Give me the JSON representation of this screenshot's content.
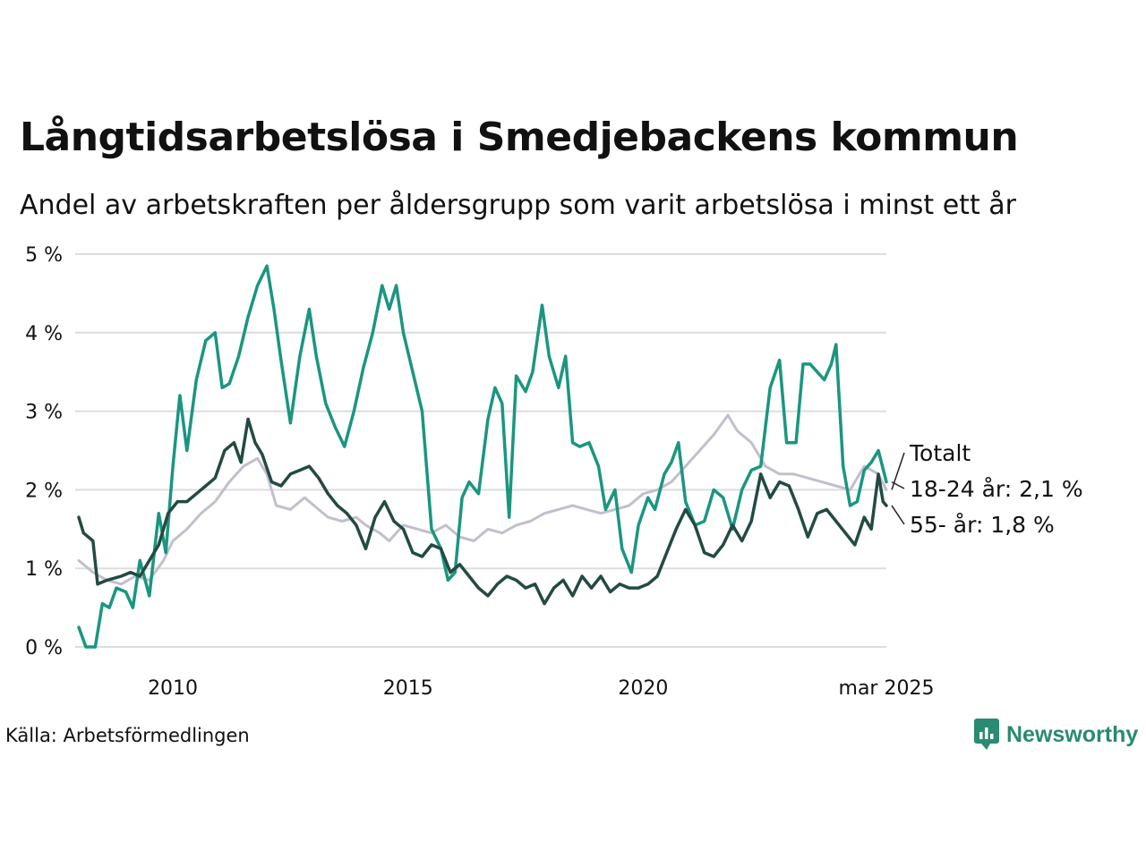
{
  "title": "Långtidsarbetslösa i Smedjebackens kommun",
  "subtitle": "Andel av arbetskraften per åldersgrupp som varit arbetslösa i minst ett år",
  "source": "Källa: Arbetsförmedlingen",
  "brand": "Newsworthy",
  "colors": {
    "totalt": "#c2bfcd",
    "age_18_24": "#1a9680",
    "age_55": "#234a43",
    "grid": "#dddddd",
    "brand": "#2a8a72"
  },
  "chart_data": {
    "type": "line",
    "title": "Långtidsarbetslösa i Smedjebackens kommun",
    "subtitle": "Andel av arbetskraften per åldersgrupp som varit arbetslösa i minst ett år",
    "ylim": [
      0,
      5
    ],
    "yticks": [
      0,
      1,
      2,
      3,
      4,
      5
    ],
    "ytick_labels": [
      "0 %",
      "1 %",
      "2 %",
      "3 %",
      "4 %",
      "5 %"
    ],
    "xlim": [
      2008.0,
      2025.17
    ],
    "xticks": [
      2010,
      2015,
      2020,
      2025.17
    ],
    "xtick_labels": [
      "2010",
      "2015",
      "2020",
      "mar 2025"
    ],
    "grid": "horizontal",
    "series": [
      {
        "name": "Totalt",
        "label": "Totalt",
        "color": "#c2bfcd",
        "points": [
          [
            2008.0,
            1.1
          ],
          [
            2008.3,
            0.95
          ],
          [
            2008.6,
            0.85
          ],
          [
            2008.9,
            0.8
          ],
          [
            2009.2,
            0.9
          ],
          [
            2009.5,
            0.85
          ],
          [
            2009.8,
            1.1
          ],
          [
            2010.0,
            1.35
          ],
          [
            2010.3,
            1.5
          ],
          [
            2010.6,
            1.7
          ],
          [
            2010.9,
            1.85
          ],
          [
            2011.2,
            2.1
          ],
          [
            2011.5,
            2.3
          ],
          [
            2011.8,
            2.4
          ],
          [
            2012.0,
            2.2
          ],
          [
            2012.2,
            1.8
          ],
          [
            2012.5,
            1.75
          ],
          [
            2012.8,
            1.9
          ],
          [
            2013.0,
            1.8
          ],
          [
            2013.3,
            1.65
          ],
          [
            2013.6,
            1.6
          ],
          [
            2013.9,
            1.65
          ],
          [
            2014.1,
            1.55
          ],
          [
            2014.4,
            1.45
          ],
          [
            2014.6,
            1.35
          ],
          [
            2014.9,
            1.55
          ],
          [
            2015.2,
            1.5
          ],
          [
            2015.5,
            1.45
          ],
          [
            2015.8,
            1.55
          ],
          [
            2016.1,
            1.4
          ],
          [
            2016.4,
            1.35
          ],
          [
            2016.7,
            1.5
          ],
          [
            2017.0,
            1.45
          ],
          [
            2017.3,
            1.55
          ],
          [
            2017.6,
            1.6
          ],
          [
            2017.9,
            1.7
          ],
          [
            2018.2,
            1.75
          ],
          [
            2018.5,
            1.8
          ],
          [
            2018.8,
            1.75
          ],
          [
            2019.1,
            1.7
          ],
          [
            2019.4,
            1.75
          ],
          [
            2019.7,
            1.8
          ],
          [
            2020.0,
            1.95
          ],
          [
            2020.3,
            2.0
          ],
          [
            2020.6,
            2.1
          ],
          [
            2020.9,
            2.3
          ],
          [
            2021.2,
            2.5
          ],
          [
            2021.5,
            2.7
          ],
          [
            2021.8,
            2.95
          ],
          [
            2022.0,
            2.75
          ],
          [
            2022.3,
            2.6
          ],
          [
            2022.6,
            2.3
          ],
          [
            2022.9,
            2.2
          ],
          [
            2023.2,
            2.2
          ],
          [
            2023.5,
            2.15
          ],
          [
            2023.8,
            2.1
          ],
          [
            2024.1,
            2.05
          ],
          [
            2024.4,
            2.0
          ],
          [
            2024.7,
            2.3
          ],
          [
            2025.0,
            2.2
          ],
          [
            2025.17,
            2.0
          ]
        ]
      },
      {
        "name": "18-24 år",
        "label": "18-24 år: 2,1 %",
        "color": "#1a9680",
        "points": [
          [
            2008.0,
            0.25
          ],
          [
            2008.15,
            0.0
          ],
          [
            2008.35,
            0.0
          ],
          [
            2008.5,
            0.55
          ],
          [
            2008.65,
            0.5
          ],
          [
            2008.8,
            0.75
          ],
          [
            2009.0,
            0.7
          ],
          [
            2009.15,
            0.5
          ],
          [
            2009.3,
            1.1
          ],
          [
            2009.5,
            0.65
          ],
          [
            2009.7,
            1.7
          ],
          [
            2009.85,
            1.2
          ],
          [
            2010.0,
            2.3
          ],
          [
            2010.15,
            3.2
          ],
          [
            2010.3,
            2.5
          ],
          [
            2010.5,
            3.4
          ],
          [
            2010.7,
            3.9
          ],
          [
            2010.9,
            4.0
          ],
          [
            2011.05,
            3.3
          ],
          [
            2011.2,
            3.35
          ],
          [
            2011.4,
            3.7
          ],
          [
            2011.6,
            4.2
          ],
          [
            2011.8,
            4.6
          ],
          [
            2012.0,
            4.85
          ],
          [
            2012.15,
            4.3
          ],
          [
            2012.3,
            3.65
          ],
          [
            2012.5,
            2.85
          ],
          [
            2012.7,
            3.7
          ],
          [
            2012.9,
            4.3
          ],
          [
            2013.05,
            3.7
          ],
          [
            2013.25,
            3.1
          ],
          [
            2013.45,
            2.8
          ],
          [
            2013.65,
            2.55
          ],
          [
            2013.85,
            3.0
          ],
          [
            2014.05,
            3.55
          ],
          [
            2014.25,
            4.0
          ],
          [
            2014.45,
            4.6
          ],
          [
            2014.6,
            4.3
          ],
          [
            2014.75,
            4.6
          ],
          [
            2014.9,
            4.0
          ],
          [
            2015.1,
            3.5
          ],
          [
            2015.3,
            3.0
          ],
          [
            2015.5,
            1.5
          ],
          [
            2015.7,
            1.25
          ],
          [
            2015.85,
            0.85
          ],
          [
            2016.0,
            0.95
          ],
          [
            2016.15,
            1.9
          ],
          [
            2016.3,
            2.1
          ],
          [
            2016.5,
            1.95
          ],
          [
            2016.7,
            2.9
          ],
          [
            2016.85,
            3.3
          ],
          [
            2017.0,
            3.1
          ],
          [
            2017.15,
            1.65
          ],
          [
            2017.3,
            3.45
          ],
          [
            2017.5,
            3.25
          ],
          [
            2017.65,
            3.5
          ],
          [
            2017.85,
            4.35
          ],
          [
            2018.0,
            3.7
          ],
          [
            2018.2,
            3.3
          ],
          [
            2018.35,
            3.7
          ],
          [
            2018.5,
            2.6
          ],
          [
            2018.65,
            2.55
          ],
          [
            2018.85,
            2.6
          ],
          [
            2019.05,
            2.3
          ],
          [
            2019.2,
            1.75
          ],
          [
            2019.4,
            2.0
          ],
          [
            2019.55,
            1.25
          ],
          [
            2019.75,
            0.95
          ],
          [
            2019.9,
            1.55
          ],
          [
            2020.1,
            1.9
          ],
          [
            2020.25,
            1.75
          ],
          [
            2020.45,
            2.2
          ],
          [
            2020.6,
            2.35
          ],
          [
            2020.75,
            2.6
          ],
          [
            2020.9,
            1.85
          ],
          [
            2021.1,
            1.55
          ],
          [
            2021.3,
            1.6
          ],
          [
            2021.5,
            2.0
          ],
          [
            2021.7,
            1.9
          ],
          [
            2021.9,
            1.5
          ],
          [
            2022.1,
            2.0
          ],
          [
            2022.3,
            2.25
          ],
          [
            2022.5,
            2.3
          ],
          [
            2022.7,
            3.3
          ],
          [
            2022.9,
            3.65
          ],
          [
            2023.05,
            2.6
          ],
          [
            2023.25,
            2.6
          ],
          [
            2023.4,
            3.6
          ],
          [
            2023.55,
            3.6
          ],
          [
            2023.7,
            3.5
          ],
          [
            2023.85,
            3.4
          ],
          [
            2024.0,
            3.6
          ],
          [
            2024.1,
            3.85
          ],
          [
            2024.25,
            2.3
          ],
          [
            2024.4,
            1.8
          ],
          [
            2024.55,
            1.85
          ],
          [
            2024.7,
            2.25
          ],
          [
            2024.85,
            2.35
          ],
          [
            2025.0,
            2.5
          ],
          [
            2025.17,
            2.1
          ]
        ]
      },
      {
        "name": "55- år",
        "label": "55- år: 1,8 %",
        "color": "#234a43",
        "points": [
          [
            2008.0,
            1.65
          ],
          [
            2008.1,
            1.45
          ],
          [
            2008.3,
            1.35
          ],
          [
            2008.4,
            0.8
          ],
          [
            2008.6,
            0.85
          ],
          [
            2008.9,
            0.9
          ],
          [
            2009.1,
            0.95
          ],
          [
            2009.3,
            0.9
          ],
          [
            2009.5,
            1.1
          ],
          [
            2009.7,
            1.3
          ],
          [
            2009.9,
            1.7
          ],
          [
            2010.1,
            1.85
          ],
          [
            2010.3,
            1.85
          ],
          [
            2010.5,
            1.95
          ],
          [
            2010.7,
            2.05
          ],
          [
            2010.9,
            2.15
          ],
          [
            2011.1,
            2.5
          ],
          [
            2011.3,
            2.6
          ],
          [
            2011.45,
            2.35
          ],
          [
            2011.6,
            2.9
          ],
          [
            2011.75,
            2.6
          ],
          [
            2011.9,
            2.45
          ],
          [
            2012.1,
            2.1
          ],
          [
            2012.3,
            2.05
          ],
          [
            2012.5,
            2.2
          ],
          [
            2012.7,
            2.25
          ],
          [
            2012.9,
            2.3
          ],
          [
            2013.1,
            2.15
          ],
          [
            2013.3,
            1.95
          ],
          [
            2013.5,
            1.8
          ],
          [
            2013.7,
            1.7
          ],
          [
            2013.9,
            1.55
          ],
          [
            2014.1,
            1.25
          ],
          [
            2014.3,
            1.65
          ],
          [
            2014.5,
            1.85
          ],
          [
            2014.7,
            1.6
          ],
          [
            2014.9,
            1.5
          ],
          [
            2015.1,
            1.2
          ],
          [
            2015.3,
            1.15
          ],
          [
            2015.5,
            1.3
          ],
          [
            2015.7,
            1.25
          ],
          [
            2015.9,
            0.95
          ],
          [
            2016.1,
            1.05
          ],
          [
            2016.3,
            0.9
          ],
          [
            2016.5,
            0.75
          ],
          [
            2016.7,
            0.65
          ],
          [
            2016.9,
            0.8
          ],
          [
            2017.1,
            0.9
          ],
          [
            2017.3,
            0.85
          ],
          [
            2017.5,
            0.75
          ],
          [
            2017.7,
            0.8
          ],
          [
            2017.9,
            0.55
          ],
          [
            2018.1,
            0.75
          ],
          [
            2018.3,
            0.85
          ],
          [
            2018.5,
            0.65
          ],
          [
            2018.7,
            0.9
          ],
          [
            2018.9,
            0.75
          ],
          [
            2019.1,
            0.9
          ],
          [
            2019.3,
            0.7
          ],
          [
            2019.5,
            0.8
          ],
          [
            2019.7,
            0.75
          ],
          [
            2019.9,
            0.75
          ],
          [
            2020.1,
            0.8
          ],
          [
            2020.3,
            0.9
          ],
          [
            2020.5,
            1.2
          ],
          [
            2020.7,
            1.5
          ],
          [
            2020.9,
            1.75
          ],
          [
            2021.1,
            1.55
          ],
          [
            2021.3,
            1.2
          ],
          [
            2021.5,
            1.15
          ],
          [
            2021.7,
            1.3
          ],
          [
            2021.9,
            1.55
          ],
          [
            2022.1,
            1.35
          ],
          [
            2022.3,
            1.6
          ],
          [
            2022.5,
            2.2
          ],
          [
            2022.7,
            1.9
          ],
          [
            2022.9,
            2.1
          ],
          [
            2023.1,
            2.05
          ],
          [
            2023.3,
            1.75
          ],
          [
            2023.5,
            1.4
          ],
          [
            2023.7,
            1.7
          ],
          [
            2023.9,
            1.75
          ],
          [
            2024.1,
            1.6
          ],
          [
            2024.3,
            1.45
          ],
          [
            2024.5,
            1.3
          ],
          [
            2024.7,
            1.65
          ],
          [
            2024.85,
            1.5
          ],
          [
            2025.0,
            2.2
          ],
          [
            2025.1,
            1.85
          ],
          [
            2025.17,
            1.8
          ]
        ]
      }
    ]
  }
}
